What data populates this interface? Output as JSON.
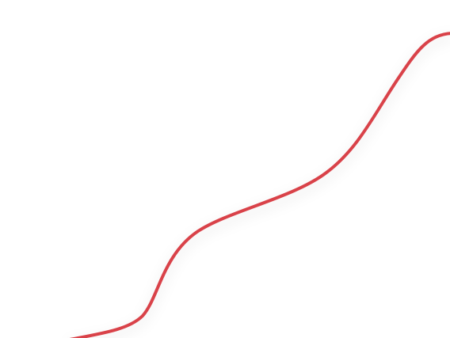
{
  "line": {
    "color": "#d9434a"
  }
}
